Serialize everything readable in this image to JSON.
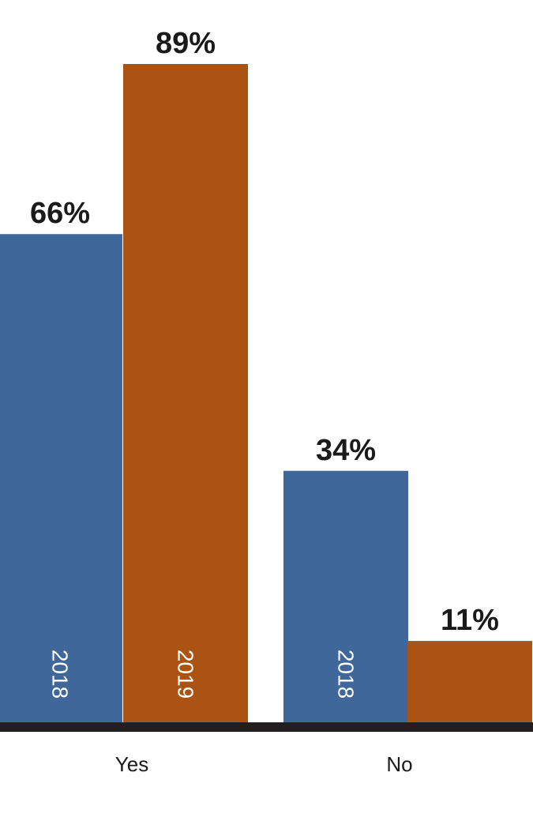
{
  "chart_data": {
    "type": "bar",
    "categories": [
      "Yes",
      "No"
    ],
    "series": [
      {
        "name": "2018",
        "values": [
          66,
          34
        ]
      },
      {
        "name": "2019",
        "values": [
          89,
          11
        ]
      }
    ],
    "data_labels": [
      [
        "66%",
        "34%"
      ],
      [
        "89%",
        "11%"
      ]
    ],
    "bar_text": [
      [
        "2018",
        "2018"
      ],
      [
        "2019",
        ""
      ]
    ],
    "ylim": [
      0,
      100
    ],
    "grid": false,
    "legend": "none",
    "colors": {
      "2018": "#40679a",
      "2019": "#ab5312",
      "axis": "#231f20"
    }
  }
}
